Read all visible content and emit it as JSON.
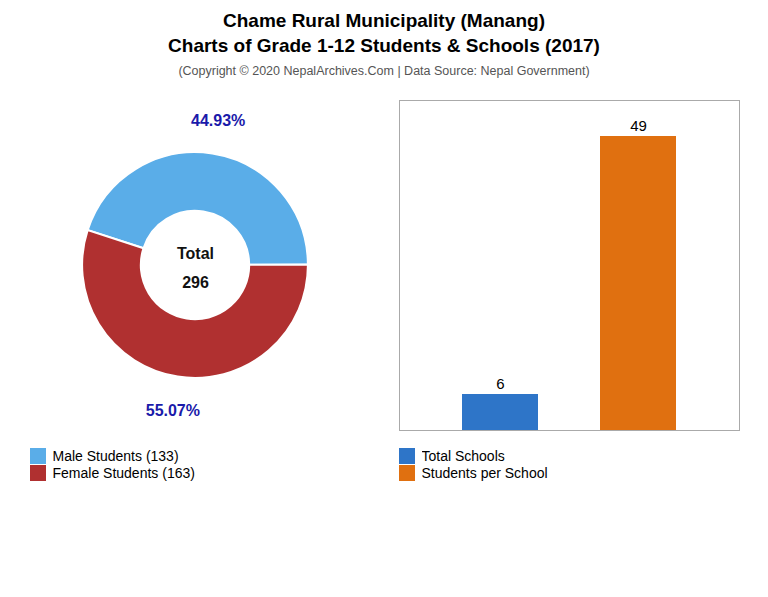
{
  "chart_data": [
    {
      "type": "pie",
      "title": "Chame Rural Municipality (Manang)\nCharts of Grade 1-12 Students & Schools (2017)",
      "subtitle": "(Copyright © 2020 NepalArchives.Com | Data Source: Nepal Government)",
      "categories": [
        "Male Students (133)",
        "Female Students (163)"
      ],
      "values": [
        44.93,
        55.07
      ],
      "value_labels": [
        "44.93%",
        "55.07%"
      ],
      "colors": [
        "#5aade8",
        "#b03030"
      ],
      "annotations": [
        "Total",
        "296"
      ],
      "data_labels": true,
      "legend": "bottom"
    },
    {
      "type": "bar",
      "categories": [
        "Total Schools",
        "Students per School"
      ],
      "values": [
        6,
        49
      ],
      "colors": [
        "#2e75c8",
        "#e07010"
      ],
      "ylim": [
        0,
        55
      ],
      "tick_labels": false,
      "grid": false,
      "data_labels": true,
      "legend": "bottom"
    }
  ]
}
